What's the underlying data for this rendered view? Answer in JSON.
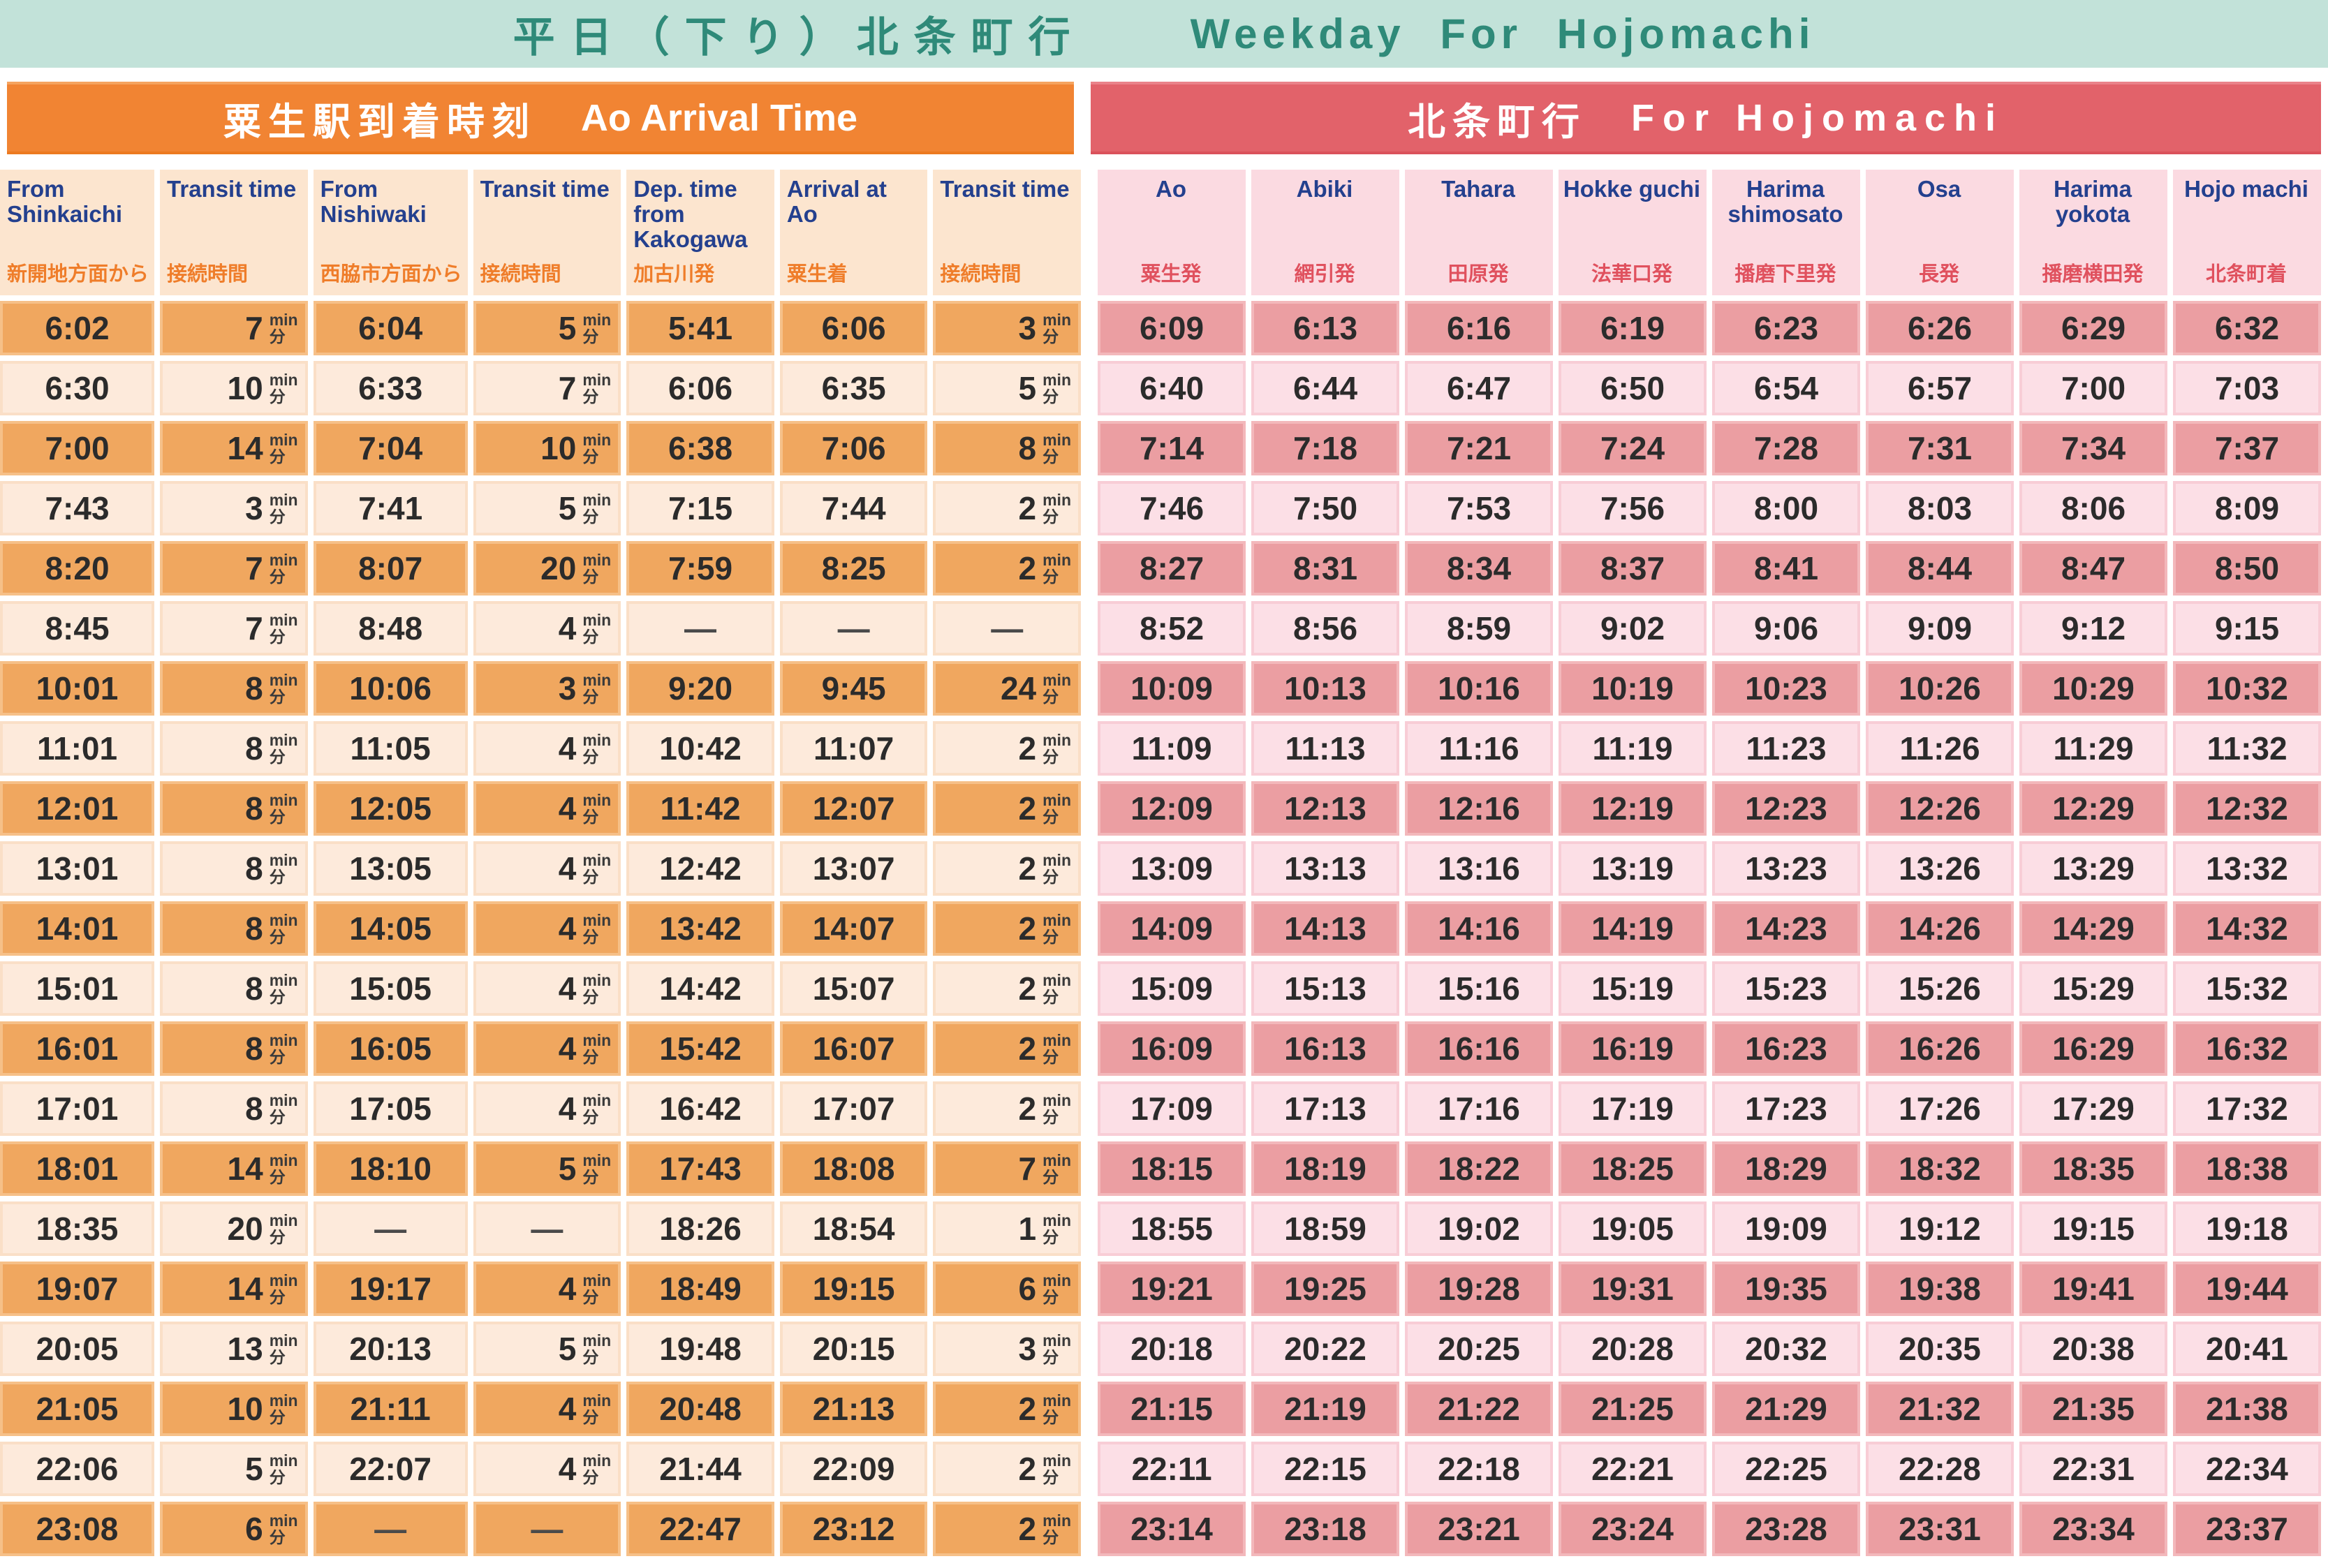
{
  "banner": {
    "title_jp": "平日（下り）北条町行",
    "title_en": "Weekday For Hojomachi"
  },
  "units": {
    "en": "min",
    "jp": "分"
  },
  "left_section": {
    "header_jp": "粟生駅到着時刻",
    "header_en": "Ao Arrival Time",
    "columns": [
      {
        "en": "From Shinkaichi",
        "jp": "新開地方面から"
      },
      {
        "en": "Transit time",
        "jp": "接続時間"
      },
      {
        "en": "From Nishiwaki",
        "jp": "西脇市方面から"
      },
      {
        "en": "Transit time",
        "jp": "接続時間"
      },
      {
        "en": "Dep. time from Kakogawa",
        "jp": "加古川発"
      },
      {
        "en": "Arrival at Ao",
        "jp": "粟生着"
      },
      {
        "en": "Transit time",
        "jp": "接続時間"
      }
    ],
    "transit_columns": [
      1,
      3,
      6
    ],
    "rows": [
      [
        "6:02",
        "7",
        "6:04",
        "5",
        "5:41",
        "6:06",
        "3"
      ],
      [
        "6:30",
        "10",
        "6:33",
        "7",
        "6:06",
        "6:35",
        "5"
      ],
      [
        "7:00",
        "14",
        "7:04",
        "10",
        "6:38",
        "7:06",
        "8"
      ],
      [
        "7:43",
        "3",
        "7:41",
        "5",
        "7:15",
        "7:44",
        "2"
      ],
      [
        "8:20",
        "7",
        "8:07",
        "20",
        "7:59",
        "8:25",
        "2"
      ],
      [
        "8:45",
        "7",
        "8:48",
        "4",
        "—",
        "—",
        "—"
      ],
      [
        "10:01",
        "8",
        "10:06",
        "3",
        "9:20",
        "9:45",
        "24"
      ],
      [
        "11:01",
        "8",
        "11:05",
        "4",
        "10:42",
        "11:07",
        "2"
      ],
      [
        "12:01",
        "8",
        "12:05",
        "4",
        "11:42",
        "12:07",
        "2"
      ],
      [
        "13:01",
        "8",
        "13:05",
        "4",
        "12:42",
        "13:07",
        "2"
      ],
      [
        "14:01",
        "8",
        "14:05",
        "4",
        "13:42",
        "14:07",
        "2"
      ],
      [
        "15:01",
        "8",
        "15:05",
        "4",
        "14:42",
        "15:07",
        "2"
      ],
      [
        "16:01",
        "8",
        "16:05",
        "4",
        "15:42",
        "16:07",
        "2"
      ],
      [
        "17:01",
        "8",
        "17:05",
        "4",
        "16:42",
        "17:07",
        "2"
      ],
      [
        "18:01",
        "14",
        "18:10",
        "5",
        "17:43",
        "18:08",
        "7"
      ],
      [
        "18:35",
        "20",
        "—",
        "—",
        "18:26",
        "18:54",
        "1"
      ],
      [
        "19:07",
        "14",
        "19:17",
        "4",
        "18:49",
        "19:15",
        "6"
      ],
      [
        "20:05",
        "13",
        "20:13",
        "5",
        "19:48",
        "20:15",
        "3"
      ],
      [
        "21:05",
        "10",
        "21:11",
        "4",
        "20:48",
        "21:13",
        "2"
      ],
      [
        "22:06",
        "5",
        "22:07",
        "4",
        "21:44",
        "22:09",
        "2"
      ],
      [
        "23:08",
        "6",
        "—",
        "—",
        "22:47",
        "23:12",
        "2"
      ]
    ]
  },
  "right_section": {
    "header_jp": "北条町行",
    "header_en": "For Hojomachi",
    "columns": [
      {
        "en": "Ao",
        "jp": "粟生発"
      },
      {
        "en": "Abiki",
        "jp": "網引発"
      },
      {
        "en": "Tahara",
        "jp": "田原発"
      },
      {
        "en": "Hokke guchi",
        "jp": "法華口発"
      },
      {
        "en": "Harima shimosato",
        "jp": "播磨下里発"
      },
      {
        "en": "Osa",
        "jp": "長発"
      },
      {
        "en": "Harima yokota",
        "jp": "播磨横田発"
      },
      {
        "en": "Hojo machi",
        "jp": "北条町着"
      }
    ],
    "transit_columns": [],
    "rows": [
      [
        "6:09",
        "6:13",
        "6:16",
        "6:19",
        "6:23",
        "6:26",
        "6:29",
        "6:32"
      ],
      [
        "6:40",
        "6:44",
        "6:47",
        "6:50",
        "6:54",
        "6:57",
        "7:00",
        "7:03"
      ],
      [
        "7:14",
        "7:18",
        "7:21",
        "7:24",
        "7:28",
        "7:31",
        "7:34",
        "7:37"
      ],
      [
        "7:46",
        "7:50",
        "7:53",
        "7:56",
        "8:00",
        "8:03",
        "8:06",
        "8:09"
      ],
      [
        "8:27",
        "8:31",
        "8:34",
        "8:37",
        "8:41",
        "8:44",
        "8:47",
        "8:50"
      ],
      [
        "8:52",
        "8:56",
        "8:59",
        "9:02",
        "9:06",
        "9:09",
        "9:12",
        "9:15"
      ],
      [
        "10:09",
        "10:13",
        "10:16",
        "10:19",
        "10:23",
        "10:26",
        "10:29",
        "10:32"
      ],
      [
        "11:09",
        "11:13",
        "11:16",
        "11:19",
        "11:23",
        "11:26",
        "11:29",
        "11:32"
      ],
      [
        "12:09",
        "12:13",
        "12:16",
        "12:19",
        "12:23",
        "12:26",
        "12:29",
        "12:32"
      ],
      [
        "13:09",
        "13:13",
        "13:16",
        "13:19",
        "13:23",
        "13:26",
        "13:29",
        "13:32"
      ],
      [
        "14:09",
        "14:13",
        "14:16",
        "14:19",
        "14:23",
        "14:26",
        "14:29",
        "14:32"
      ],
      [
        "15:09",
        "15:13",
        "15:16",
        "15:19",
        "15:23",
        "15:26",
        "15:29",
        "15:32"
      ],
      [
        "16:09",
        "16:13",
        "16:16",
        "16:19",
        "16:23",
        "16:26",
        "16:29",
        "16:32"
      ],
      [
        "17:09",
        "17:13",
        "17:16",
        "17:19",
        "17:23",
        "17:26",
        "17:29",
        "17:32"
      ],
      [
        "18:15",
        "18:19",
        "18:22",
        "18:25",
        "18:29",
        "18:32",
        "18:35",
        "18:38"
      ],
      [
        "18:55",
        "18:59",
        "19:02",
        "19:05",
        "19:09",
        "19:12",
        "19:15",
        "19:18"
      ],
      [
        "19:21",
        "19:25",
        "19:28",
        "19:31",
        "19:35",
        "19:38",
        "19:41",
        "19:44"
      ],
      [
        "20:18",
        "20:22",
        "20:25",
        "20:28",
        "20:32",
        "20:35",
        "20:38",
        "20:41"
      ],
      [
        "21:15",
        "21:19",
        "21:22",
        "21:25",
        "21:29",
        "21:32",
        "21:35",
        "21:38"
      ],
      [
        "22:11",
        "22:15",
        "22:18",
        "22:21",
        "22:25",
        "22:28",
        "22:31",
        "22:34"
      ],
      [
        "23:14",
        "23:18",
        "23:21",
        "23:24",
        "23:28",
        "23:31",
        "23:34",
        "23:37"
      ]
    ]
  },
  "colors": {
    "banner_bg": "#c2e2d9",
    "banner_text": "#2f8a79",
    "left_bar_bg": "#f18433",
    "right_bar_bg": "#e2626a",
    "header_english_text": "#24408e",
    "header_japanese_left": "#ef7d2a",
    "header_japanese_right": "#e0515e",
    "orange_row_dark": "#f0a75f",
    "orange_row_light": "#fdeadb",
    "pink_row_dark": "#eb9ea2",
    "pink_row_light": "#fcdfe6",
    "cell_text": "#2b2b2b"
  }
}
